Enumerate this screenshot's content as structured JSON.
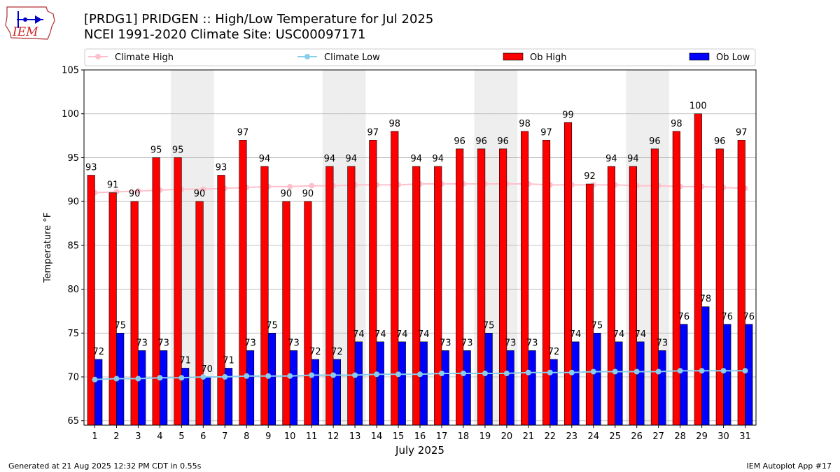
{
  "title": {
    "line1": "[PRDG1] PRIDGEN :: High/Low Temperature for Jul 2025",
    "line2": "NCEI 1991-2020 Climate Site: USC00097171"
  },
  "logo": {
    "text": "IEM"
  },
  "footer": {
    "left": "Generated at 21 Aug 2025 12:32 PM CDT in 0.55s",
    "right": "IEM Autoplot App #17"
  },
  "colors": {
    "ob_high": "#ff0000",
    "ob_low": "#0000ff",
    "climate_high": "#ffc0cb",
    "climate_low": "#87ceeb",
    "weekend_shade": "#eeeeee",
    "grid": "#b0b0b0"
  },
  "chart_data": {
    "type": "bar",
    "xlabel": "July 2025",
    "ylabel": "Temperature °F",
    "ylim": [
      64.5,
      105
    ],
    "yticks": [
      65,
      70,
      75,
      80,
      85,
      90,
      95,
      100,
      105
    ],
    "grid": true,
    "legend_placement": "top",
    "categories": [
      "1",
      "2",
      "3",
      "4",
      "5",
      "6",
      "7",
      "8",
      "9",
      "10",
      "11",
      "12",
      "13",
      "14",
      "15",
      "16",
      "17",
      "18",
      "19",
      "20",
      "21",
      "22",
      "23",
      "24",
      "25",
      "26",
      "27",
      "28",
      "29",
      "30",
      "31"
    ],
    "shaded_days": [
      5,
      6,
      12,
      13,
      19,
      20,
      26,
      27
    ],
    "series": [
      {
        "name": "Ob High",
        "kind": "bar",
        "values": [
          93,
          91,
          90,
          95,
          95,
          90,
          93,
          97,
          94,
          90,
          90,
          94,
          94,
          97,
          98,
          94,
          94,
          96,
          96,
          96,
          98,
          97,
          99,
          92,
          94,
          94,
          96,
          98,
          100,
          96,
          97
        ]
      },
      {
        "name": "Ob Low",
        "kind": "bar",
        "values": [
          72,
          75,
          73,
          73,
          71,
          70,
          71,
          73,
          75,
          73,
          72,
          72,
          74,
          74,
          74,
          74,
          73,
          73,
          75,
          73,
          73,
          72,
          74,
          75,
          74,
          74,
          73,
          76,
          78,
          76,
          76
        ]
      },
      {
        "name": "Climate High",
        "kind": "line",
        "values": [
          91.0,
          91.1,
          91.2,
          91.3,
          91.4,
          91.4,
          91.5,
          91.6,
          91.7,
          91.7,
          91.8,
          91.8,
          91.9,
          91.9,
          91.9,
          92.0,
          92.0,
          92.0,
          92.0,
          92.0,
          92.0,
          91.9,
          91.9,
          91.9,
          91.9,
          91.8,
          91.8,
          91.7,
          91.7,
          91.6,
          91.5
        ]
      },
      {
        "name": "Climate Low",
        "kind": "line",
        "values": [
          69.7,
          69.8,
          69.8,
          69.9,
          69.9,
          70.0,
          70.0,
          70.1,
          70.1,
          70.1,
          70.2,
          70.2,
          70.2,
          70.3,
          70.3,
          70.3,
          70.4,
          70.4,
          70.4,
          70.4,
          70.5,
          70.5,
          70.5,
          70.6,
          70.6,
          70.6,
          70.6,
          70.7,
          70.7,
          70.7,
          70.7
        ]
      }
    ]
  }
}
